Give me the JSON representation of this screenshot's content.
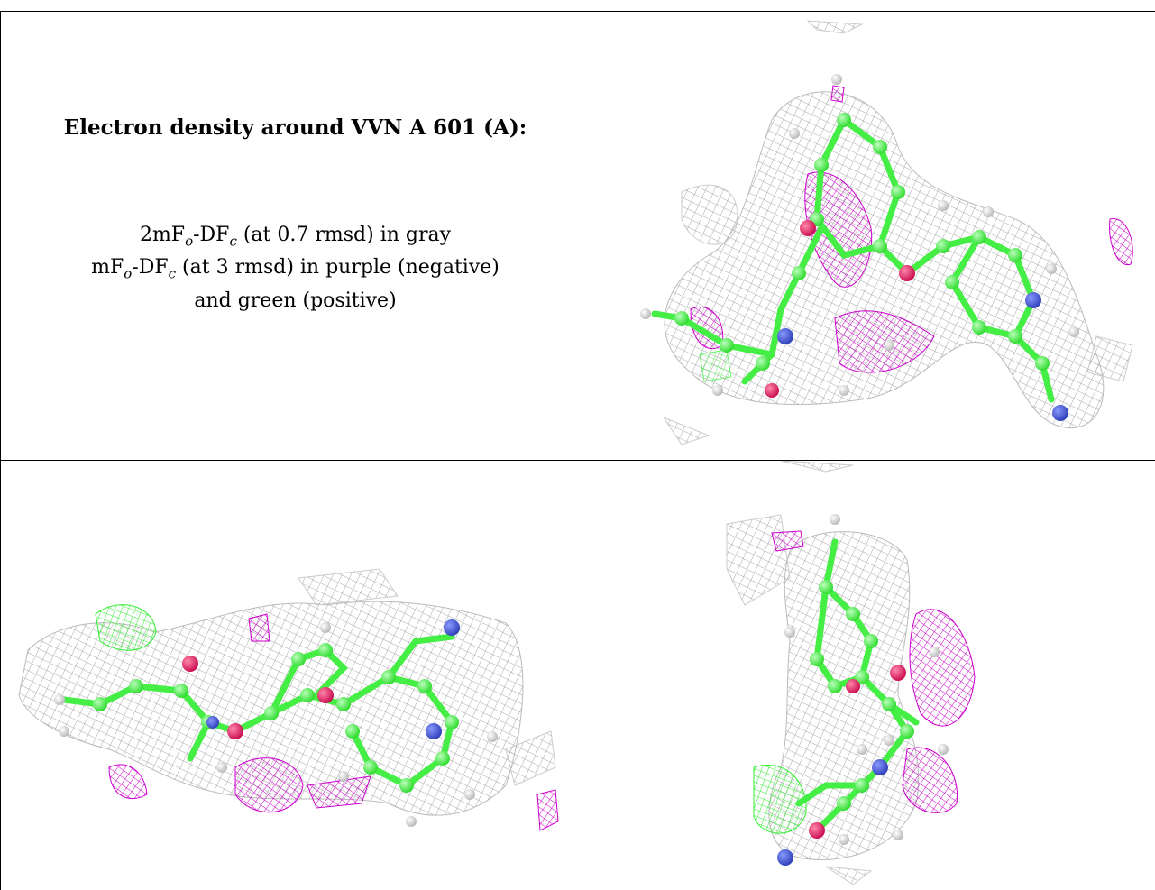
{
  "caption": {
    "title": "Electron density around VVN A 601 (A):",
    "line1_prefix": "2mF",
    "line1_sub1": "o",
    "line1_mid": "-DF",
    "line1_sub2": "c",
    "line1_rest": " (at 0.7 rmsd) in gray",
    "line2_prefix": "mF",
    "line2_sub1": "o",
    "line2_mid": "-DF",
    "line2_sub2": "c",
    "line2_rest": " (at 3 rmsd) in purple (negative)",
    "line3": "and green (positive)"
  },
  "colors": {
    "mesh_gray": "#a8a8a8",
    "mesh_purple": "#cc00cc",
    "mesh_green": "#33ee33",
    "carbon_green": "#44ee44",
    "oxygen_red": "#dd2266",
    "nitrogen_blue": "#4455cc",
    "hydrogen_white": "#e8e8e8"
  }
}
